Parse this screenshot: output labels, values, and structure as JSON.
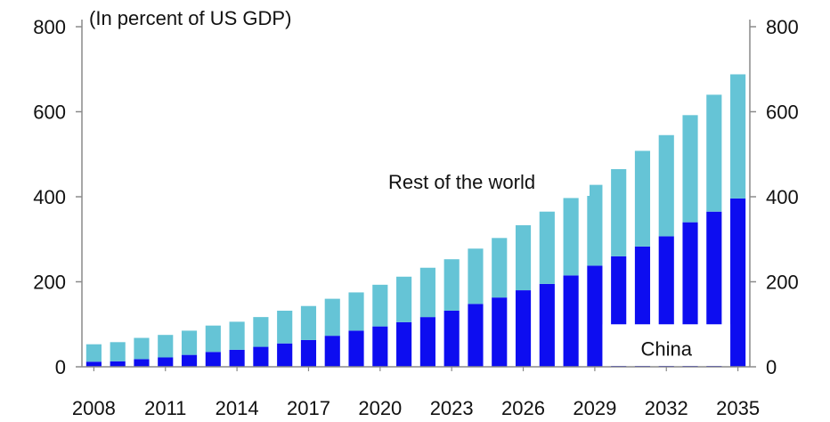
{
  "chart_data": {
    "type": "bar",
    "stacked": true,
    "subtitle": "(In percent of US GDP)",
    "categories": [
      "2008",
      "2009",
      "2010",
      "2011",
      "2012",
      "2013",
      "2014",
      "2015",
      "2016",
      "2017",
      "2018",
      "2019",
      "2020",
      "2021",
      "2022",
      "2023",
      "2024",
      "2025",
      "2026",
      "2027",
      "2028",
      "2029",
      "2030",
      "2031",
      "2032",
      "2033",
      "2034",
      "2035"
    ],
    "x_tick_labels": [
      "2008",
      "2011",
      "2014",
      "2017",
      "2020",
      "2023",
      "2026",
      "2029",
      "2032",
      "2035"
    ],
    "series": [
      {
        "name": "China",
        "color": "#0d0df0",
        "values": [
          12,
          13,
          18,
          22,
          28,
          35,
          40,
          47,
          55,
          63,
          73,
          85,
          95,
          105,
          117,
          132,
          148,
          163,
          180,
          195,
          215,
          238,
          260,
          283,
          307,
          340,
          365,
          396
        ]
      },
      {
        "name": "Rest of the world",
        "color": "#65c4d6",
        "values": [
          41,
          45,
          50,
          53,
          57,
          62,
          66,
          70,
          77,
          80,
          87,
          90,
          98,
          107,
          116,
          121,
          130,
          140,
          153,
          170,
          182,
          190,
          205,
          225,
          238,
          252,
          275,
          292
        ]
      }
    ],
    "ylim": [
      0,
      800
    ],
    "yticks": [
      0,
      200,
      400,
      600,
      800
    ],
    "y_axis_left": true,
    "y_axis_right": true,
    "grid": false
  }
}
